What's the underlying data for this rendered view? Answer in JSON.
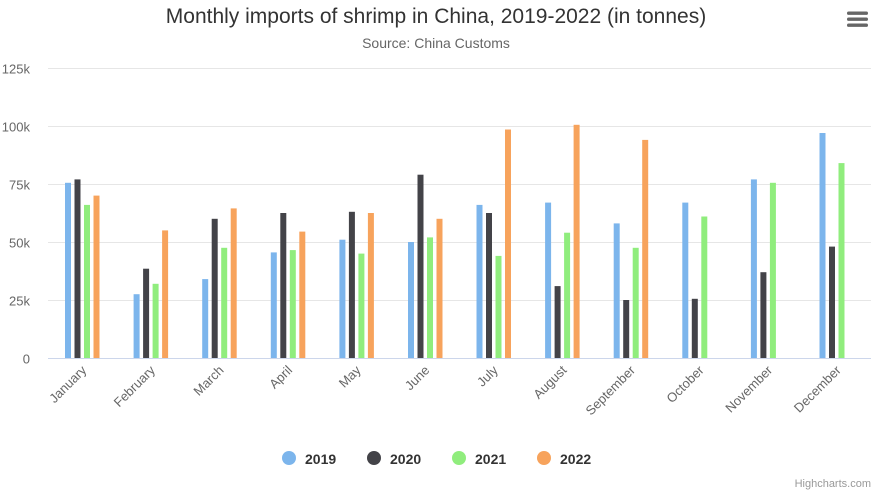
{
  "menu": {
    "icon": "hamburger-menu-icon"
  },
  "credits": "Highcharts.com",
  "chart_data": {
    "type": "bar",
    "title": "Monthly imports of shrimp in China, 2019-2022 (in tonnes)",
    "subtitle": "Source: China Customs",
    "categories": [
      "January",
      "February",
      "March",
      "April",
      "May",
      "June",
      "July",
      "August",
      "September",
      "October",
      "November",
      "December"
    ],
    "ylim": [
      0,
      125000
    ],
    "ytick_values": [
      0,
      25000,
      50000,
      75000,
      100000,
      125000
    ],
    "ytick_labels": [
      "0",
      "25k",
      "50k",
      "75k",
      "100k",
      "125k"
    ],
    "grid": true,
    "legend_position": "bottom-center",
    "series": [
      {
        "name": "2019",
        "color": "#7cb5ec",
        "values": [
          75500,
          27500,
          34000,
          45500,
          51000,
          50000,
          66000,
          67000,
          58000,
          67000,
          77000,
          97000
        ]
      },
      {
        "name": "2020",
        "color": "#434348",
        "values": [
          77000,
          38500,
          60000,
          62500,
          63000,
          79000,
          62500,
          31000,
          25000,
          25500,
          37000,
          48000
        ]
      },
      {
        "name": "2021",
        "color": "#90ed7d",
        "values": [
          66000,
          32000,
          47500,
          46500,
          45000,
          52000,
          44000,
          54000,
          47500,
          61000,
          75500,
          84000
        ]
      },
      {
        "name": "2022",
        "color": "#f7a35c",
        "values": [
          70000,
          55000,
          64500,
          54500,
          62500,
          60000,
          98500,
          100500,
          94000,
          null,
          null,
          null
        ]
      }
    ]
  }
}
